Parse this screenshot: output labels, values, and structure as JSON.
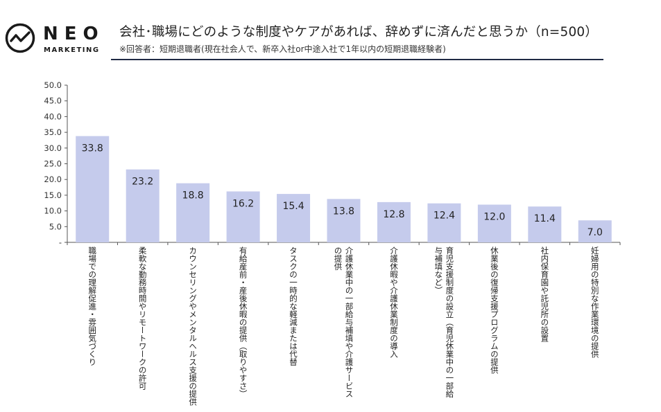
{
  "logo": {
    "name": "NEO",
    "sub": "MARKETING"
  },
  "header": {
    "title": "会社･職場にどのような制度やケアがあれば、辞めずに済んだと思うか（n=500）",
    "subtitle": "※回答者：短期退職者(現在社会人で、新卒入社or中途入社で1年以内の短期退職経験者)"
  },
  "colors": {
    "bar": "#c5cbec",
    "axis": "#555555",
    "rule": "#1f2a44"
  },
  "chart_data": {
    "type": "bar",
    "title": "会社･職場にどのような制度やケアがあれば、辞めずに済んだと思うか（n=500）",
    "categories": [
      "職場での理解促進・雰囲気づくり",
      "柔軟な勤務時間やリモートワークの許可",
      "カウンセリングやメンタルヘルス支援の提供",
      "有給産前・産後休暇の提供（取りやすさ）",
      "タスクの一時的な軽減または代替",
      "介護休業中の一部給与補填や介護サービスの提供",
      "介護休暇や介護休業制度の導入",
      "育児支援制度の設立（育児休業中の一部給与補填など）",
      "休業後の復帰支援プログラムの提供",
      "社内保育園や託児所の設置",
      "妊婦用の特別な作業環境の提供"
    ],
    "category_lines": [
      [
        "職場での理解促進・雰囲気づくり"
      ],
      [
        "柔軟な勤務時間やリモートワークの許可"
      ],
      [
        "カウンセリングやメンタルヘルス支援の提供"
      ],
      [
        "有給産前・産後休暇の提供（取りやすさ）"
      ],
      [
        "タスクの一時的な軽減または代替"
      ],
      [
        "介護休業中の一部給与補填や介護サービス",
        "の提供"
      ],
      [
        "介護休暇や介護休業制度の導入"
      ],
      [
        "育児支援制度の設立（育児休業中の一部給",
        "与補填など）"
      ],
      [
        "休業後の復帰支援プログラムの提供"
      ],
      [
        "社内保育園や託児所の設置"
      ],
      [
        "妊婦用の特別な作業環境の提供"
      ]
    ],
    "values": [
      33.8,
      23.2,
      18.8,
      16.2,
      15.4,
      13.8,
      12.8,
      12.4,
      12.0,
      11.4,
      7.0
    ],
    "data_labels": [
      "33.8",
      "23.2",
      "18.8",
      "16.2",
      "15.4",
      "13.8",
      "12.8",
      "12.4",
      "12.0",
      "11.4",
      "7.0"
    ],
    "yticks": [
      0,
      5,
      10,
      15,
      20,
      25,
      30,
      35,
      40,
      45,
      50
    ],
    "ytick_labels": [
      "-",
      "5.0",
      "10.0",
      "15.0",
      "20.0",
      "25.0",
      "30.0",
      "35.0",
      "40.0",
      "45.0",
      "50.0"
    ],
    "ylim": [
      0,
      50
    ],
    "xlabel": "",
    "ylabel": ""
  }
}
